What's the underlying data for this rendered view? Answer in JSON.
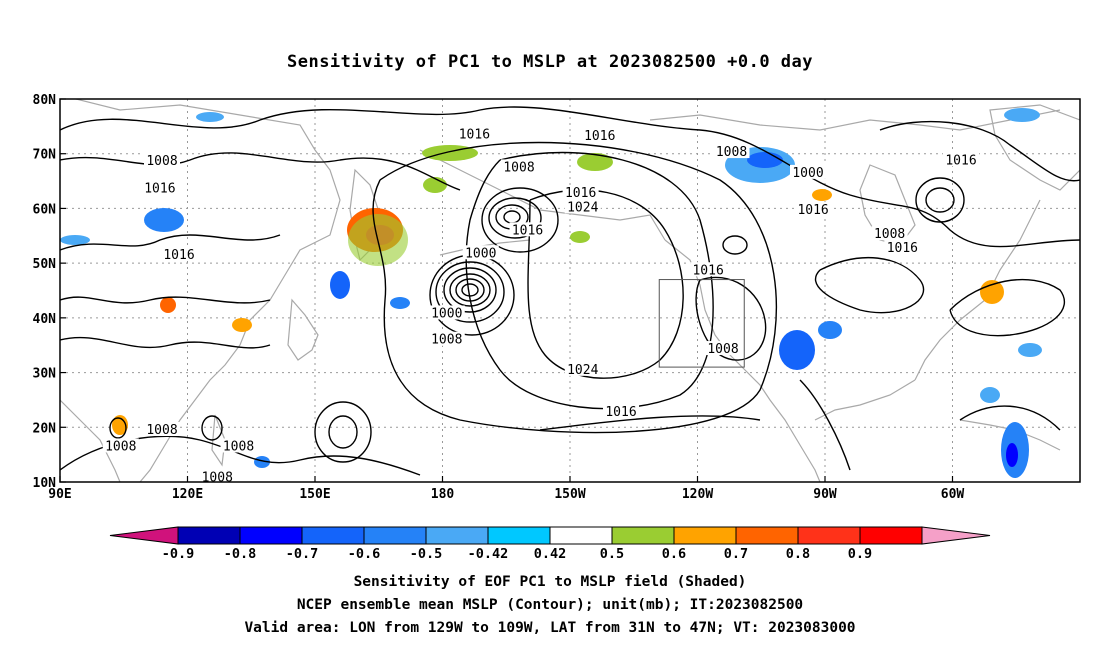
{
  "title": "Sensitivity of PC1 to MSLP at 2023082500 +0.0 day",
  "map": {
    "lat_labels": [
      "80N",
      "70N",
      "60N",
      "50N",
      "40N",
      "30N",
      "20N",
      "10N"
    ],
    "lon_labels": [
      "90E",
      "120E",
      "150E",
      "180",
      "150W",
      "120W",
      "90W",
      "60W"
    ],
    "valid_box": {
      "lon_from": "129W",
      "lon_to": "109W",
      "lat_from": "31N",
      "lat_to": "47N"
    },
    "contour_labels": [
      {
        "text": "1016",
        "lon": -172.5,
        "lat": 73.5
      },
      {
        "text": "1008",
        "lon": -162,
        "lat": 67.5
      },
      {
        "text": "1016",
        "lon": -147.5,
        "lat": 62.8
      },
      {
        "text": "1024",
        "lon": -147,
        "lat": 60.2
      },
      {
        "text": "1000",
        "lon": -171,
        "lat": 51.8
      },
      {
        "text": "1016",
        "lon": -160,
        "lat": 56
      },
      {
        "text": "1016",
        "lon": -117.5,
        "lat": 48.7
      },
      {
        "text": "1008",
        "lon": -114,
        "lat": 34.3
      },
      {
        "text": "1024",
        "lon": -147,
        "lat": 30.5
      },
      {
        "text": "1016",
        "lon": -138,
        "lat": 22.8
      },
      {
        "text": "1000",
        "lon": -179,
        "lat": 40.8
      },
      {
        "text": "1008",
        "lon": -179,
        "lat": 36
      },
      {
        "text": "1016",
        "lon": -143,
        "lat": 73.2
      },
      {
        "text": "1008",
        "lon": -112,
        "lat": 70.3
      },
      {
        "text": "1000",
        "lon": -94,
        "lat": 66.5
      },
      {
        "text": "1016",
        "lon": -92.8,
        "lat": 59.7
      },
      {
        "text": "1008",
        "lon": -74.8,
        "lat": 55.3
      },
      {
        "text": "1016",
        "lon": -71.8,
        "lat": 52.8
      },
      {
        "text": "1016",
        "lon": -58,
        "lat": 68.8
      },
      {
        "text": "1008",
        "lon": 114,
        "lat": 68.7
      },
      {
        "text": "1016",
        "lon": 113.5,
        "lat": 63.6
      },
      {
        "text": "1016",
        "lon": 118,
        "lat": 51.5
      },
      {
        "text": "1008",
        "lon": 114,
        "lat": 19.5
      },
      {
        "text": "1008",
        "lon": 104.3,
        "lat": 16.5
      },
      {
        "text": "1008",
        "lon": 132,
        "lat": 16.5
      },
      {
        "text": "1008",
        "lon": 127,
        "lat": 10.8
      }
    ],
    "colors": {
      "land": "#a9a9a9",
      "contour": "#000000",
      "grid": "#999999"
    }
  },
  "colorbar": {
    "labels": [
      "-0.9",
      "-0.8",
      "-0.7",
      "-0.6",
      "-0.5",
      "-0.42",
      "0.42",
      "0.5",
      "0.6",
      "0.7",
      "0.8",
      "0.9"
    ],
    "colors": [
      "#d0127c",
      "#0000b4",
      "#0000ff",
      "#1464fa",
      "#2582f7",
      "#4aa9f5",
      "#00c8ff",
      "#ffffff",
      "#9acd32",
      "#ffa300",
      "#ff6400",
      "#ff3219",
      "#ff0000",
      "#f5a0c8"
    ]
  },
  "captions": {
    "line1": "Sensitivity of EOF PC1 to MSLP field (Shaded)",
    "line2": "NCEP ensemble mean MSLP (Contour); unit(mb); IT:2023082500",
    "line3": "Valid area: LON from 129W to 109W, LAT from 31N to 47N; VT: 2023083000"
  }
}
